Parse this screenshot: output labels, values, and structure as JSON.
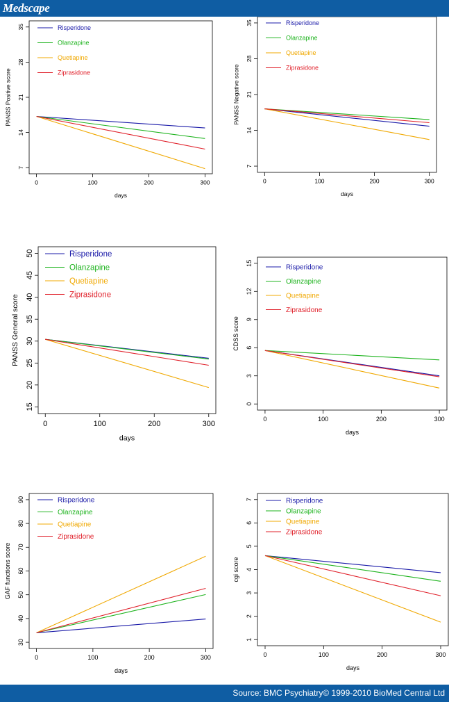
{
  "header": {
    "logo": "Medscape"
  },
  "footer": {
    "source": "Source: BMC Psychiatry© 1999-2010 BioMed Central Ltd"
  },
  "colors": {
    "brand_bar": "#0f5da3",
    "Risperidone": "#1a1aa8",
    "Olanzapine": "#1db31d",
    "Quetiapine": "#f0a800",
    "Ziprasidone": "#e0202a"
  },
  "chart_data": [
    {
      "type": "line",
      "xlabel": "days",
      "ylabel": "PANSS Positive score",
      "xlim": [
        0,
        300
      ],
      "ylim": [
        7,
        35
      ],
      "xticks": [
        0,
        100,
        200,
        300
      ],
      "yticks": [
        7,
        14,
        21,
        28,
        35
      ],
      "grid": false,
      "legend": "top-left",
      "series": [
        {
          "name": "Risperidone",
          "x": [
            0,
            300
          ],
          "values": [
            17.2,
            14.9
          ]
        },
        {
          "name": "Olanzapine",
          "x": [
            0,
            300
          ],
          "values": [
            17.2,
            12.8
          ]
        },
        {
          "name": "Quetiapine",
          "x": [
            0,
            300
          ],
          "values": [
            17.2,
            6.8
          ]
        },
        {
          "name": "Ziprasidone",
          "x": [
            0,
            300
          ],
          "values": [
            17.2,
            10.7
          ]
        }
      ]
    },
    {
      "type": "line",
      "xlabel": "days",
      "ylabel": "PANSS Negative score",
      "xlim": [
        0,
        300
      ],
      "ylim": [
        7,
        35
      ],
      "xticks": [
        0,
        100,
        200,
        300
      ],
      "yticks": [
        7,
        14,
        21,
        28,
        35
      ],
      "grid": false,
      "legend": "top-left",
      "series": [
        {
          "name": "Risperidone",
          "x": [
            0,
            300
          ],
          "values": [
            18.2,
            14.8
          ]
        },
        {
          "name": "Olanzapine",
          "x": [
            0,
            300
          ],
          "values": [
            18.2,
            16.1
          ]
        },
        {
          "name": "Quetiapine",
          "x": [
            0,
            300
          ],
          "values": [
            18.2,
            12.2
          ]
        },
        {
          "name": "Ziprasidone",
          "x": [
            0,
            300
          ],
          "values": [
            18.2,
            15.5
          ]
        }
      ]
    },
    {
      "type": "line",
      "xlabel": "days",
      "ylabel": "PANSS General score",
      "xlim": [
        0,
        300
      ],
      "ylim": [
        15,
        50
      ],
      "xticks": [
        0,
        100,
        200,
        300
      ],
      "yticks": [
        15,
        20,
        25,
        30,
        35,
        40,
        45,
        50
      ],
      "grid": false,
      "legend": "top-left",
      "series": [
        {
          "name": "Risperidone",
          "x": [
            0,
            300
          ],
          "values": [
            30.4,
            26.1
          ]
        },
        {
          "name": "Olanzapine",
          "x": [
            0,
            300
          ],
          "values": [
            30.4,
            25.9
          ]
        },
        {
          "name": "Quetiapine",
          "x": [
            0,
            300
          ],
          "values": [
            30.4,
            19.4
          ]
        },
        {
          "name": "Ziprasidone",
          "x": [
            0,
            300
          ],
          "values": [
            30.4,
            24.5
          ]
        }
      ]
    },
    {
      "type": "line",
      "xlabel": "days",
      "ylabel": "CDSS score",
      "xlim": [
        0,
        300
      ],
      "ylim": [
        0,
        15
      ],
      "xticks": [
        0,
        100,
        200,
        300
      ],
      "yticks": [
        0,
        3,
        6,
        9,
        12,
        15
      ],
      "grid": false,
      "legend": "top-left",
      "series": [
        {
          "name": "Risperidone",
          "x": [
            0,
            300
          ],
          "values": [
            5.7,
            3.0
          ]
        },
        {
          "name": "Olanzapine",
          "x": [
            0,
            300
          ],
          "values": [
            5.7,
            4.7
          ]
        },
        {
          "name": "Quetiapine",
          "x": [
            0,
            300
          ],
          "values": [
            5.7,
            1.7
          ]
        },
        {
          "name": "Ziprasidone",
          "x": [
            0,
            300
          ],
          "values": [
            5.7,
            2.9
          ]
        }
      ]
    },
    {
      "type": "line",
      "xlabel": "days",
      "ylabel": "GAF functions score",
      "xlim": [
        0,
        300
      ],
      "ylim": [
        30,
        90
      ],
      "xticks": [
        0,
        100,
        200,
        300
      ],
      "yticks": [
        30,
        40,
        50,
        60,
        70,
        80,
        90
      ],
      "grid": false,
      "legend": "top-left",
      "series": [
        {
          "name": "Risperidone",
          "x": [
            0,
            300
          ],
          "values": [
            34.0,
            39.8
          ]
        },
        {
          "name": "Olanzapine",
          "x": [
            0,
            300
          ],
          "values": [
            34.0,
            50.1
          ]
        },
        {
          "name": "Quetiapine",
          "x": [
            0,
            300
          ],
          "values": [
            34.0,
            66.2
          ]
        },
        {
          "name": "Ziprasidone",
          "x": [
            0,
            300
          ],
          "values": [
            34.0,
            52.7
          ]
        }
      ]
    },
    {
      "type": "line",
      "xlabel": "days",
      "ylabel": "cgi score",
      "xlim": [
        0,
        300
      ],
      "ylim": [
        1,
        7
      ],
      "xticks": [
        0,
        100,
        200,
        300
      ],
      "yticks": [
        1,
        2,
        3,
        4,
        5,
        6,
        7
      ],
      "grid": false,
      "legend": "top-left",
      "series": [
        {
          "name": "Risperidone",
          "x": [
            0,
            300
          ],
          "values": [
            4.6,
            3.87
          ]
        },
        {
          "name": "Olanzapine",
          "x": [
            0,
            300
          ],
          "values": [
            4.6,
            3.5
          ]
        },
        {
          "name": "Quetiapine",
          "x": [
            0,
            300
          ],
          "values": [
            4.6,
            1.75
          ]
        },
        {
          "name": "Ziprasidone",
          "x": [
            0,
            300
          ],
          "values": [
            4.6,
            2.88
          ]
        }
      ]
    }
  ]
}
